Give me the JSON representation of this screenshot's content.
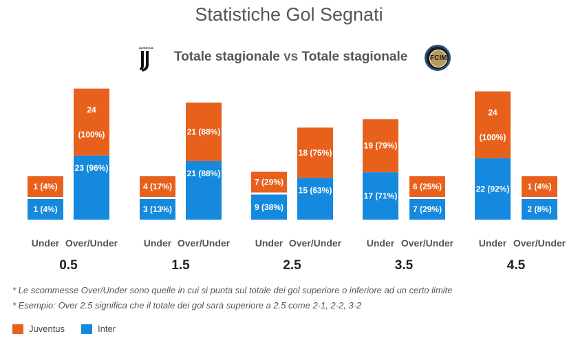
{
  "chart_data": {
    "type": "bar",
    "title": "Statistiche Gol Segnati",
    "subtitle": {
      "left": "Totale stagionale",
      "vs": "vs",
      "right": "Totale stagionale"
    },
    "categories": [
      "0.5",
      "1.5",
      "2.5",
      "3.5",
      "4.5"
    ],
    "bar_labels": [
      "Under",
      "Over/Under"
    ],
    "series": [
      {
        "name": "Juventus",
        "color": "#e8611c",
        "under": [
          {
            "v": 1,
            "label": "1 (4%)"
          },
          {
            "v": 4,
            "label": "4 (17%)"
          },
          {
            "v": 7,
            "label": "7 (29%)"
          },
          {
            "v": 19,
            "label": "19 (79%)"
          },
          {
            "v": 24,
            "label": "24\n(100%)"
          }
        ],
        "over": [
          {
            "v": 24,
            "label": "24\n(100%)"
          },
          {
            "v": 21,
            "label": "21 (88%)"
          },
          {
            "v": 18,
            "label": "18 (75%)"
          },
          {
            "v": 6,
            "label": "6 (25%)"
          },
          {
            "v": 1,
            "label": "1 (4%)"
          }
        ]
      },
      {
        "name": "Inter",
        "color": "#1589dd",
        "under": [
          {
            "v": 1,
            "label": "1 (4%)"
          },
          {
            "v": 3,
            "label": "3 (13%)"
          },
          {
            "v": 9,
            "label": "9 (38%)"
          },
          {
            "v": 17,
            "label": "17 (71%)"
          },
          {
            "v": 22,
            "label": "22 (92%)"
          }
        ],
        "over": [
          {
            "v": 23,
            "label": "23 (96%)"
          },
          {
            "v": 21,
            "label": "21 (88%)"
          },
          {
            "v": 15,
            "label": "15 (63%)"
          },
          {
            "v": 7,
            "label": "7 (29%)"
          },
          {
            "v": 2,
            "label": "2 (8%)"
          }
        ]
      }
    ]
  },
  "notes": [
    "* Le scommesse Over/Under sono quelle in cui si punta sul totale dei gol superiore o inferiore ad un certo limite",
    "* Esempio: Over 2.5 significa che il totale dei gol sarà superiore a 2.5 come 2-1, 2-2, 3-2"
  ],
  "legend": [
    "Juventus",
    "Inter"
  ],
  "logos": {
    "juventus": "JUVENTUS",
    "inter": "FCIM"
  }
}
